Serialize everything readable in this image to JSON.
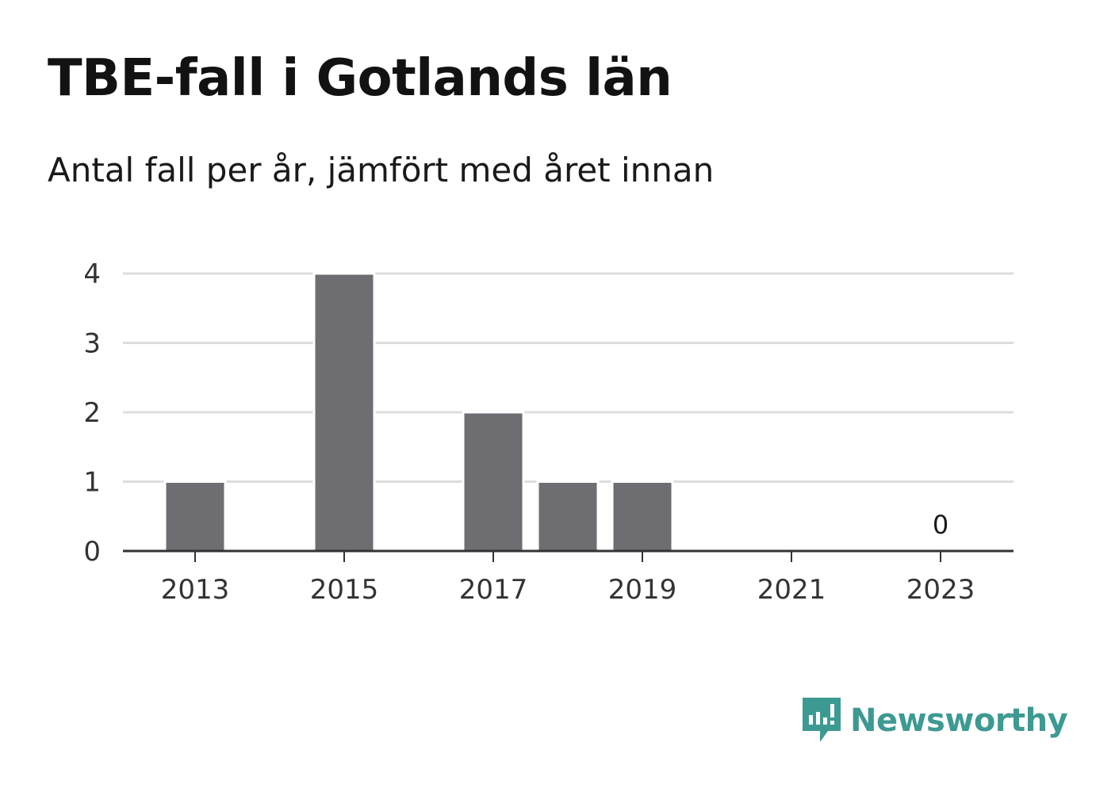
{
  "chart_data": {
    "type": "bar",
    "title": "TBE-fall i Gotlands län",
    "subtitle": "Antal fall per år, jämfört med året innan",
    "x": [
      2013,
      2014,
      2015,
      2016,
      2017,
      2018,
      2019,
      2020,
      2021,
      2022,
      2023
    ],
    "values": [
      1,
      0,
      4,
      0,
      2,
      1,
      1,
      0,
      0,
      0,
      0
    ],
    "x_ticks": [
      "2013",
      "2015",
      "2017",
      "2019",
      "2021",
      "2023"
    ],
    "y_ticks": [
      "0",
      "1",
      "2",
      "3",
      "4"
    ],
    "ylim": [
      0,
      4
    ],
    "grid": true,
    "annotations": [
      {
        "x": 2023,
        "text": "0"
      }
    ],
    "colors": {
      "bar": "#6e6d72",
      "grid": "#dddddd",
      "axis": "#333333"
    }
  },
  "brand": {
    "name": "Newsworthy",
    "icon": "newsworthy-logo-icon",
    "color": "#3d9a92"
  }
}
